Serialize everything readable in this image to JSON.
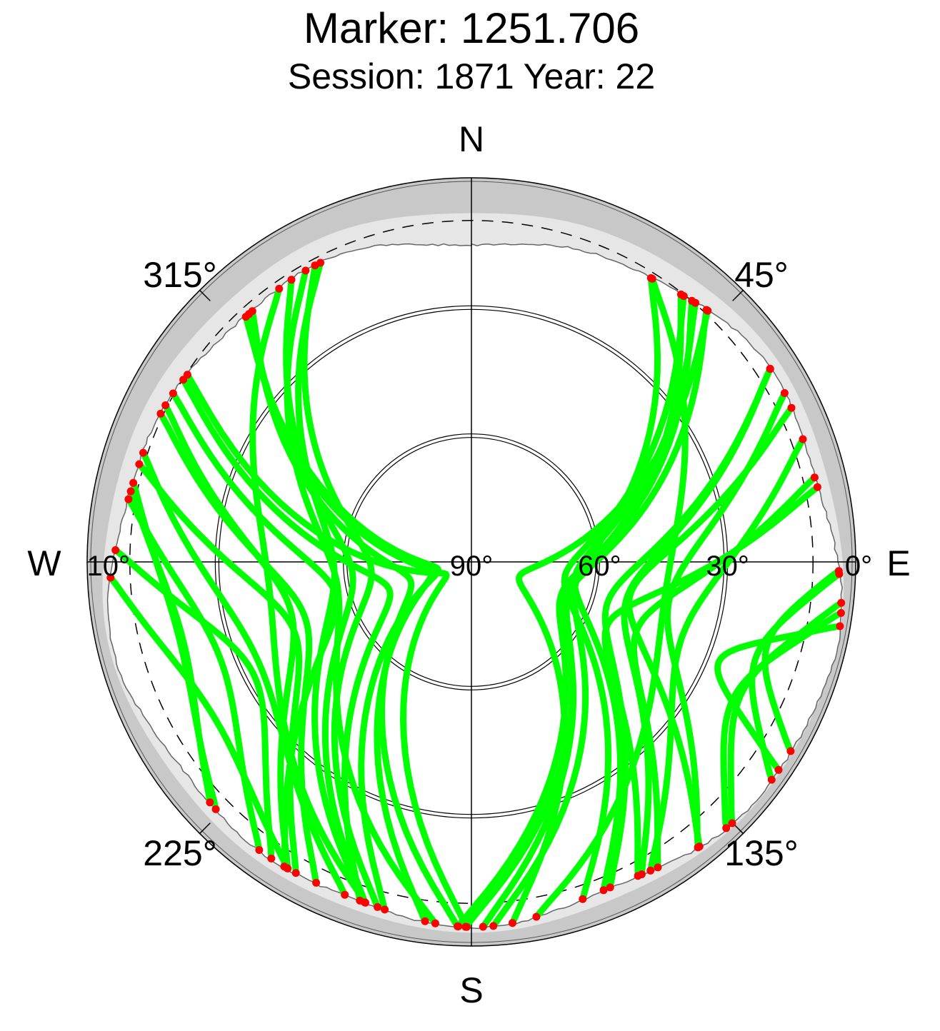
{
  "chart_data": {
    "type": "scatter",
    "projection": "polar-skyplot",
    "title": "Marker: 1251.706",
    "subtitle": "Session: 1871 Year: 22",
    "compass": {
      "north": "N",
      "south": "S",
      "east": "E",
      "west": "W"
    },
    "azimuth_labels": [
      {
        "azimuth": 45,
        "text": "45°"
      },
      {
        "azimuth": 135,
        "text": "135°"
      },
      {
        "azimuth": 225,
        "text": "225°"
      },
      {
        "azimuth": 315,
        "text": "315°"
      }
    ],
    "elevation_labels": [
      {
        "elevation": 90,
        "text": "90°"
      },
      {
        "elevation": 60,
        "text": "60°"
      },
      {
        "elevation": 30,
        "text": "30°"
      },
      {
        "elevation": 0,
        "text": "0°"
      },
      {
        "elevation": 10,
        "text": "10°"
      }
    ],
    "elevation_range": [
      0,
      90
    ],
    "cutoff_elevation": 10,
    "colors": {
      "track": "#00ff00",
      "endpoint": "#ff0000",
      "horizon_mask": "#c8c8c8",
      "visibility_zone": "#e6e6e6",
      "plot_area": "#ffffff"
    },
    "series": [
      {
        "name": "",
        "marker": "track",
        "color": "#00ff00"
      },
      {
        "name": "",
        "marker": "endpoint",
        "color": "#ff0000"
      }
    ]
  }
}
